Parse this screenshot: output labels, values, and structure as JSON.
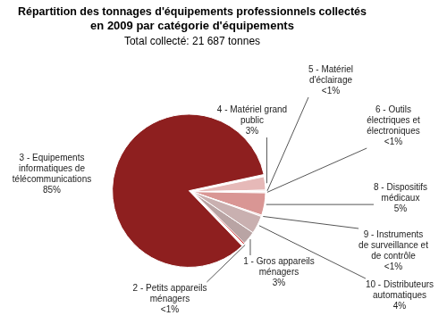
{
  "chart_data": {
    "type": "pie",
    "title": [
      "Répartition des tonnages d'équipements professionnels collectés",
      "en 2009 par catégorie d'équipements"
    ],
    "subtitle": "Total collecté: 21 687 tonnes",
    "categories": [
      "1 - Gros appareils ménagers",
      "2 - Petits appareils ménagers",
      "3 - Equipements informatiques de télécommunications",
      "4 - Matériel grand public",
      "5 - Matériel d'éclairage",
      "6 - Outils électriques et électroniques",
      "8 - Dispositifs médicaux",
      "9 - Instruments de surveillance et de contrôle",
      "10 - Distributeurs automatiques"
    ],
    "values": [
      3,
      0.3,
      85,
      3,
      0.3,
      0.3,
      5,
      0.3,
      4
    ],
    "value_labels": [
      "3%",
      "<1%",
      "85%",
      "3%",
      "<1%",
      "<1%",
      "5%",
      "<1%",
      "4%"
    ],
    "colors": [
      "#b9a4a4",
      "#c00000",
      "#8e1f1f",
      "#e6b9b8",
      "#f2dcdb",
      "#f5e4e4",
      "#d99694",
      "#e8c6c6",
      "#c9b0b0"
    ],
    "data_labels": true
  }
}
